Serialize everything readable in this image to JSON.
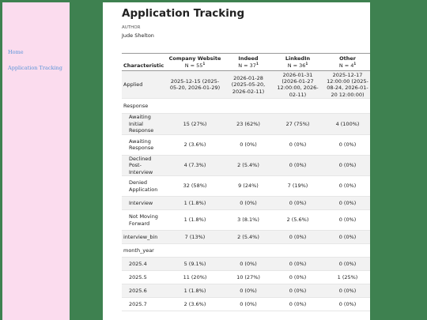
{
  "nav": {
    "home": "Home",
    "app_tracking": "Application Tracking"
  },
  "page": {
    "title": "Application Tracking",
    "author_label": "AUTHOR",
    "author_name": "Jude Shelton"
  },
  "table": {
    "headers": [
      {
        "label": "Characteristic",
        "n": ""
      },
      {
        "label": "Company Website",
        "n": "N = 55"
      },
      {
        "label": "Indeed",
        "n": "N = 37"
      },
      {
        "label": "LinkedIn",
        "n": "N = 36"
      },
      {
        "label": "Other",
        "n": "N = 4"
      }
    ],
    "footnote_mark": "1",
    "rows": [
      {
        "label": "Applied",
        "indent": false,
        "cells": [
          "2025-12-15 (2025-05-20, 2026-01-29)",
          "2026-01-28 (2025-05-20, 2026-02-11)",
          "2026-01-31 (2026-01-27 12:00:00, 2026-02-11)",
          "2025-12-17 12:00:00 (2025-08-24, 2026-01-20 12:00:00)"
        ]
      },
      {
        "label": "Response",
        "indent": false,
        "cells": [
          "",
          "",
          "",
          ""
        ]
      },
      {
        "label": "Awaiting Initial Response",
        "indent": true,
        "cells": [
          "15 (27%)",
          "23 (62%)",
          "27 (75%)",
          "4 (100%)"
        ]
      },
      {
        "label": "Awaiting Response",
        "indent": true,
        "cells": [
          "2 (3.6%)",
          "0 (0%)",
          "0 (0%)",
          "0 (0%)"
        ]
      },
      {
        "label": "Declined Post-Interview",
        "indent": true,
        "cells": [
          "4 (7.3%)",
          "2 (5.4%)",
          "0 (0%)",
          "0 (0%)"
        ]
      },
      {
        "label": "Denied Application",
        "indent": true,
        "cells": [
          "32 (58%)",
          "9 (24%)",
          "7 (19%)",
          "0 (0%)"
        ]
      },
      {
        "label": "Interview",
        "indent": true,
        "cells": [
          "1 (1.8%)",
          "0 (0%)",
          "0 (0%)",
          "0 (0%)"
        ]
      },
      {
        "label": "Not Moving Forward",
        "indent": true,
        "cells": [
          "1 (1.8%)",
          "3 (8.1%)",
          "2 (5.6%)",
          "0 (0%)"
        ]
      },
      {
        "label": "interview_bin",
        "indent": false,
        "cells": [
          "7 (13%)",
          "2 (5.4%)",
          "0 (0%)",
          "0 (0%)"
        ]
      },
      {
        "label": "month_year",
        "indent": false,
        "cells": [
          "",
          "",
          "",
          ""
        ]
      },
      {
        "label": "2025.4",
        "indent": true,
        "cells": [
          "5 (9.1%)",
          "0 (0%)",
          "0 (0%)",
          "0 (0%)"
        ]
      },
      {
        "label": "2025.5",
        "indent": true,
        "cells": [
          "11 (20%)",
          "10 (27%)",
          "0 (0%)",
          "1 (25%)"
        ]
      },
      {
        "label": "2025.6",
        "indent": true,
        "cells": [
          "1 (1.8%)",
          "0 (0%)",
          "0 (0%)",
          "0 (0%)"
        ]
      },
      {
        "label": "2025.7",
        "indent": true,
        "cells": [
          "2 (3.6%)",
          "0 (0%)",
          "0 (0%)",
          "0 (0%)"
        ]
      }
    ]
  }
}
